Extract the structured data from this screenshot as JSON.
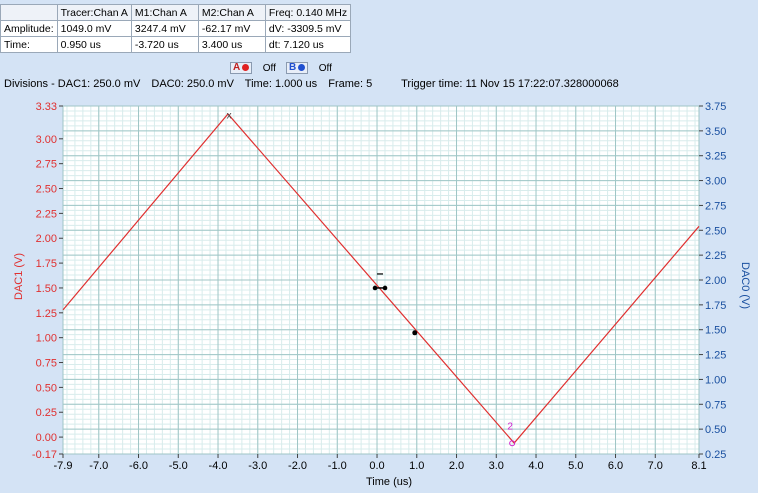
{
  "measurements": {
    "headers": [
      "",
      "Tracer:Chan A",
      "M1:Chan A",
      "M2:Chan A",
      "Freq: 0.140 MHz"
    ],
    "rows": [
      [
        "Amplitude:",
        "1049.0 mV",
        "3247.4 mV",
        "-62.17 mV",
        "dV: -3309.5 mV"
      ],
      [
        "Time:",
        "0.950 us",
        "-3.720 us",
        "3.400 us",
        "dt:  7.120 us"
      ]
    ]
  },
  "controls": {
    "a_label": "A",
    "a_state": "Off",
    "b_label": "B",
    "b_state": "Off",
    "a_color": "#e02020",
    "b_color": "#2050d0"
  },
  "info": {
    "divisions": "Divisions -  DAC1: 250.0 mV",
    "dac0": "DAC0: 250.0 mV",
    "time": "Time: 1.000 us",
    "frame": "Frame: 5",
    "trigger": "Trigger time: 11 Nov 15 17:22:07.328000068"
  },
  "chart_data": {
    "type": "line",
    "xlabel": "Time (us)",
    "ylabel_left": "DAC1 (V)",
    "ylabel_right": "DAC0 (V)",
    "x_ticks": [
      "-7.9",
      "-7.0",
      "-6.0",
      "-5.0",
      "-4.0",
      "-3.0",
      "-2.0",
      "-1.0",
      "0.0",
      "1.0",
      "2.0",
      "3.0",
      "4.0",
      "5.0",
      "6.0",
      "7.0",
      "8.1"
    ],
    "x_tick_values": [
      -7.9,
      -7,
      -6,
      -5,
      -4,
      -3,
      -2,
      -1,
      0,
      1,
      2,
      3,
      4,
      5,
      6,
      7,
      8.1
    ],
    "xlim": [
      -7.9,
      8.1
    ],
    "ylim_left": [
      -0.17,
      3.33
    ],
    "ylim_right": [
      0.25,
      3.75
    ],
    "y_ticks_left": [
      "3.33",
      "3.00",
      "2.75",
      "2.50",
      "2.25",
      "2.00",
      "1.75",
      "1.50",
      "1.25",
      "1.00",
      "0.75",
      "0.50",
      "0.25",
      "0.00",
      "-0.17"
    ],
    "y_tick_values_left": [
      3.33,
      3.0,
      2.75,
      2.5,
      2.25,
      2.0,
      1.75,
      1.5,
      1.25,
      1.0,
      0.75,
      0.5,
      0.25,
      0.0,
      -0.17
    ],
    "y_ticks_right": [
      "3.75",
      "3.50",
      "3.25",
      "3.00",
      "2.75",
      "2.50",
      "2.25",
      "2.00",
      "1.75",
      "1.50",
      "1.25",
      "1.00",
      "0.75",
      "0.50",
      "0.25"
    ],
    "y_tick_values_right": [
      3.75,
      3.5,
      3.25,
      3.0,
      2.75,
      2.5,
      2.25,
      2.0,
      1.75,
      1.5,
      1.25,
      1.0,
      0.75,
      0.5,
      0.25
    ],
    "grid": true,
    "series": [
      {
        "color": "#e03030",
        "x": [
          -7.9,
          -3.75,
          3.45,
          8.1
        ],
        "y": [
          1.28,
          3.25,
          -0.06,
          2.12
        ]
      }
    ],
    "markers": [
      {
        "label": "x",
        "x": -3.72,
        "y": 3.247,
        "color": "#404040"
      },
      {
        "label": "2",
        "x": 3.4,
        "y": -0.062,
        "color": "#d020d0"
      }
    ],
    "tracer": {
      "x": 0.95,
      "y": 1.049
    },
    "trigger": {
      "x": 0.0,
      "y": 1.5
    },
    "colors": {
      "left_axis": "#e03030",
      "right_axis": "#1a50a0",
      "grid_major": "#9fc6c6",
      "grid_minor": "#d8ecec"
    }
  }
}
